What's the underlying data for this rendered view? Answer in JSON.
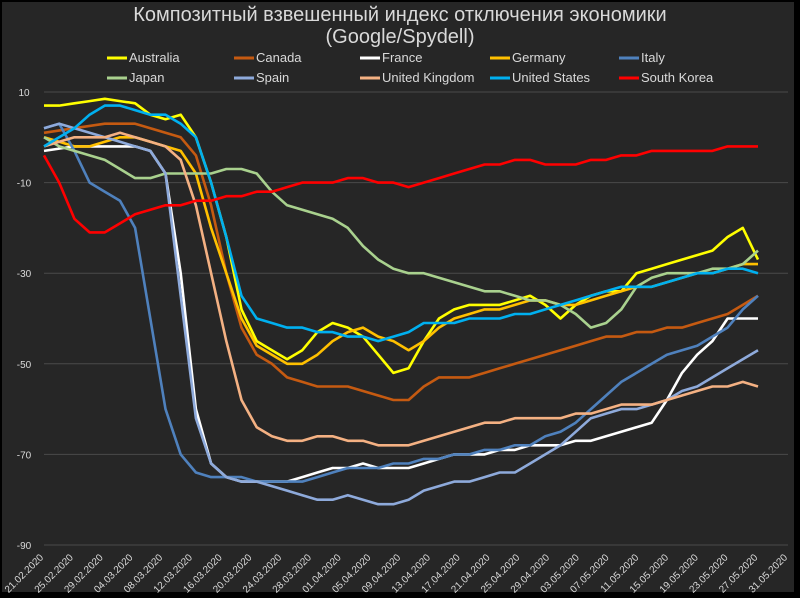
{
  "chart_data": {
    "type": "line",
    "title_line1": "Композитный взвешенный индекс отключения экономики",
    "title_line2": "(Google/Spydell)",
    "ylim": [
      -90,
      10
    ],
    "yticks": [
      10,
      -10,
      -30,
      -50,
      -70,
      -90
    ],
    "grid": "horizontal",
    "legend_position": "top",
    "x_tick_labels": [
      "21.02.2020",
      "25.02.2020",
      "29.02.2020",
      "04.03.2020",
      "08.03.2020",
      "12.03.2020",
      "16.03.2020",
      "20.03.2020",
      "24.03.2020",
      "28.03.2020",
      "01.04.2020",
      "05.04.2020",
      "09.04.2020",
      "13.04.2020",
      "17.04.2020",
      "21.04.2020",
      "25.04.2020",
      "29.04.2020",
      "03.05.2020",
      "07.05.2020",
      "11.05.2020",
      "15.05.2020",
      "19.05.2020",
      "23.05.2020",
      "27.05.2020",
      "31.05.2020"
    ],
    "series": [
      {
        "name": "Australia",
        "color": "#ffff00",
        "x": [
          0,
          2,
          4,
          6,
          8,
          10,
          12,
          14,
          16,
          18,
          20,
          22,
          24,
          26,
          28,
          30,
          32,
          34,
          36,
          38,
          40,
          42,
          44,
          46,
          48,
          50,
          52,
          54,
          56,
          58,
          60,
          62,
          64,
          66,
          68,
          70,
          72,
          74,
          76,
          78,
          80,
          82,
          84,
          86,
          88,
          90,
          92,
          94
        ],
        "y": [
          7,
          7,
          7.5,
          8,
          8.5,
          8,
          7.5,
          5,
          4,
          5,
          0,
          -10,
          -22,
          -38,
          -45,
          -47,
          -49,
          -47,
          -43,
          -41,
          -42,
          -44,
          -48,
          -52,
          -51,
          -45,
          -40,
          -38,
          -37,
          -37,
          -37,
          -36,
          -35,
          -37,
          -40,
          -37,
          -35,
          -34,
          -34,
          -30,
          -29,
          -28,
          -27,
          -26,
          -25,
          -22,
          -20,
          -27
        ]
      },
      {
        "name": "Canada",
        "color": "#c55a11",
        "x": [
          0,
          4,
          8,
          12,
          14,
          16,
          18,
          20,
          22,
          24,
          26,
          28,
          30,
          32,
          34,
          36,
          38,
          40,
          42,
          44,
          46,
          48,
          50,
          52,
          54,
          56,
          58,
          60,
          62,
          64,
          66,
          68,
          70,
          72,
          74,
          76,
          78,
          80,
          82,
          84,
          86,
          88,
          90,
          92,
          94
        ],
        "y": [
          1,
          2,
          3,
          3,
          2,
          1,
          0,
          -4,
          -15,
          -30,
          -42,
          -48,
          -50,
          -53,
          -54,
          -55,
          -55,
          -55,
          -56,
          -57,
          -58,
          -58,
          -55,
          -53,
          -53,
          -53,
          -52,
          -51,
          -50,
          -49,
          -48,
          -47,
          -46,
          -45,
          -44,
          -44,
          -43,
          -43,
          -42,
          -42,
          -41,
          -40,
          -39,
          -37,
          -35
        ]
      },
      {
        "name": "France",
        "color": "#ffffff",
        "x": [
          0,
          4,
          8,
          10,
          12,
          14,
          16,
          18,
          20,
          22,
          24,
          26,
          28,
          30,
          32,
          34,
          36,
          38,
          40,
          42,
          44,
          46,
          48,
          50,
          52,
          54,
          56,
          58,
          60,
          62,
          64,
          66,
          68,
          70,
          72,
          74,
          76,
          78,
          80,
          82,
          84,
          86,
          88,
          90,
          92,
          94
        ],
        "y": [
          -3,
          -2,
          -2,
          -2,
          -2,
          -3,
          -8,
          -30,
          -60,
          -72,
          -75,
          -76,
          -76,
          -76,
          -76,
          -75,
          -74,
          -73,
          -73,
          -72,
          -73,
          -73,
          -73,
          -72,
          -71,
          -70,
          -70,
          -70,
          -69,
          -69,
          -68,
          -68,
          -68,
          -67,
          -67,
          -66,
          -65,
          -64,
          -63,
          -58,
          -52,
          -48,
          -45,
          -40,
          -40,
          -40
        ]
      },
      {
        "name": "Germany",
        "color": "#ffc000",
        "x": [
          0,
          2,
          4,
          6,
          8,
          10,
          12,
          14,
          16,
          18,
          20,
          22,
          24,
          26,
          28,
          30,
          32,
          34,
          36,
          38,
          40,
          42,
          44,
          46,
          48,
          50,
          52,
          54,
          56,
          58,
          60,
          62,
          64,
          66,
          68,
          70,
          72,
          74,
          76,
          78,
          80,
          82,
          84,
          86,
          88,
          90,
          92,
          94
        ],
        "y": [
          0,
          -1,
          -2,
          -2,
          -1,
          0,
          0,
          -1,
          -2,
          -3,
          -8,
          -20,
          -30,
          -40,
          -46,
          -48,
          -50,
          -50,
          -48,
          -45,
          -43,
          -42,
          -44,
          -45,
          -47,
          -45,
          -42,
          -40,
          -39,
          -38,
          -38,
          -37,
          -36,
          -36,
          -37,
          -37,
          -36,
          -35,
          -34,
          -33,
          -33,
          -32,
          -31,
          -30,
          -30,
          -29,
          -28,
          -28
        ]
      },
      {
        "name": "Italy",
        "color": "#4f81bd",
        "x": [
          0,
          2,
          4,
          6,
          8,
          10,
          12,
          14,
          16,
          18,
          20,
          22,
          24,
          26,
          28,
          30,
          32,
          34,
          36,
          38,
          40,
          42,
          44,
          46,
          48,
          50,
          52,
          54,
          56,
          58,
          60,
          62,
          64,
          66,
          68,
          70,
          72,
          74,
          76,
          78,
          80,
          82,
          84,
          86,
          88,
          90,
          92,
          94
        ],
        "y": [
          2,
          3,
          -3,
          -10,
          -12,
          -14,
          -20,
          -40,
          -60,
          -70,
          -74,
          -75,
          -75,
          -75,
          -76,
          -76,
          -76,
          -76,
          -75,
          -74,
          -73,
          -73,
          -73,
          -72,
          -72,
          -71,
          -71,
          -70,
          -70,
          -69,
          -69,
          -68,
          -68,
          -66,
          -65,
          -63,
          -60,
          -57,
          -54,
          -52,
          -50,
          -48,
          -47,
          -46,
          -44,
          -42,
          -38,
          -35
        ]
      },
      {
        "name": "Japan",
        "color": "#a9d18e",
        "x": [
          0,
          2,
          4,
          6,
          8,
          10,
          12,
          14,
          16,
          18,
          20,
          22,
          24,
          26,
          28,
          30,
          32,
          34,
          36,
          38,
          40,
          42,
          44,
          46,
          48,
          50,
          52,
          54,
          56,
          58,
          60,
          62,
          64,
          66,
          68,
          70,
          72,
          74,
          76,
          78,
          80,
          82,
          84,
          86,
          88,
          90,
          92,
          94
        ],
        "y": [
          0,
          -2,
          -3,
          -4,
          -5,
          -7,
          -9,
          -9,
          -8,
          -8,
          -8,
          -8,
          -7,
          -7,
          -8,
          -12,
          -15,
          -16,
          -17,
          -18,
          -20,
          -24,
          -27,
          -29,
          -30,
          -30,
          -31,
          -32,
          -33,
          -34,
          -34,
          -35,
          -36,
          -36,
          -37,
          -39,
          -42,
          -41,
          -38,
          -33,
          -31,
          -30,
          -30,
          -30,
          -29,
          -29,
          -28,
          -25
        ]
      },
      {
        "name": "Spain",
        "color": "#8eaadb",
        "x": [
          0,
          2,
          4,
          6,
          8,
          10,
          12,
          14,
          16,
          18,
          20,
          22,
          24,
          26,
          28,
          30,
          32,
          34,
          36,
          38,
          40,
          42,
          44,
          46,
          48,
          50,
          52,
          54,
          56,
          58,
          60,
          62,
          64,
          66,
          68,
          70,
          72,
          74,
          76,
          78,
          80,
          82,
          84,
          86,
          88,
          90,
          92,
          94
        ],
        "y": [
          2,
          3,
          2,
          1,
          0,
          -1,
          -2,
          -3,
          -8,
          -35,
          -62,
          -72,
          -75,
          -76,
          -76,
          -77,
          -78,
          -79,
          -80,
          -80,
          -79,
          -80,
          -81,
          -81,
          -80,
          -78,
          -77,
          -76,
          -76,
          -75,
          -74,
          -74,
          -72,
          -70,
          -68,
          -65,
          -62,
          -61,
          -60,
          -60,
          -59,
          -58,
          -56,
          -55,
          -53,
          -51,
          -49,
          -47
        ]
      },
      {
        "name": "United Kingdom",
        "color": "#f4b183",
        "x": [
          0,
          2,
          4,
          6,
          8,
          10,
          12,
          14,
          16,
          18,
          20,
          22,
          24,
          26,
          28,
          30,
          32,
          34,
          36,
          38,
          40,
          42,
          44,
          46,
          48,
          50,
          52,
          54,
          56,
          58,
          60,
          62,
          64,
          66,
          68,
          70,
          72,
          74,
          76,
          78,
          80,
          82,
          84,
          86,
          88,
          90,
          92,
          94
        ],
        "y": [
          -2,
          -1,
          0,
          0,
          0,
          1,
          0,
          -1,
          -2,
          -5,
          -15,
          -30,
          -45,
          -58,
          -64,
          -66,
          -67,
          -67,
          -66,
          -66,
          -67,
          -67,
          -68,
          -68,
          -68,
          -67,
          -66,
          -65,
          -64,
          -63,
          -63,
          -62,
          -62,
          -62,
          -62,
          -61,
          -61,
          -60,
          -59,
          -59,
          -59,
          -58,
          -57,
          -56,
          -55,
          -55,
          -54,
          -55
        ]
      },
      {
        "name": "United States",
        "color": "#00b0f0",
        "x": [
          0,
          2,
          4,
          6,
          8,
          10,
          12,
          14,
          16,
          18,
          20,
          22,
          24,
          26,
          28,
          30,
          32,
          34,
          36,
          38,
          40,
          42,
          44,
          46,
          48,
          50,
          52,
          54,
          56,
          58,
          60,
          62,
          64,
          66,
          68,
          70,
          72,
          74,
          76,
          78,
          80,
          82,
          84,
          86,
          88,
          90,
          92,
          94
        ],
        "y": [
          -2,
          0,
          2,
          5,
          7,
          7,
          6,
          5,
          5,
          3,
          0,
          -10,
          -22,
          -35,
          -40,
          -41,
          -42,
          -42,
          -43,
          -43,
          -44,
          -44,
          -45,
          -44,
          -43,
          -41,
          -41,
          -41,
          -40,
          -40,
          -40,
          -39,
          -39,
          -38,
          -37,
          -36,
          -35,
          -34,
          -33,
          -33,
          -33,
          -32,
          -31,
          -30,
          -30,
          -29,
          -29,
          -30
        ]
      },
      {
        "name": "South Korea",
        "color": "#ff0000",
        "x": [
          0,
          2,
          4,
          6,
          8,
          10,
          12,
          14,
          16,
          18,
          20,
          22,
          24,
          26,
          28,
          30,
          32,
          34,
          36,
          38,
          40,
          42,
          44,
          46,
          48,
          50,
          52,
          54,
          56,
          58,
          60,
          62,
          64,
          66,
          68,
          70,
          72,
          74,
          76,
          78,
          80,
          82,
          84,
          86,
          88,
          90,
          92,
          94
        ],
        "y": [
          -4,
          -10,
          -18,
          -21,
          -21,
          -19,
          -17,
          -16,
          -15,
          -15,
          -14,
          -14,
          -13,
          -13,
          -12,
          -12,
          -11,
          -10,
          -10,
          -10,
          -9,
          -9,
          -10,
          -10,
          -11,
          -10,
          -9,
          -8,
          -7,
          -6,
          -6,
          -5,
          -5,
          -6,
          -6,
          -6,
          -5,
          -5,
          -4,
          -4,
          -3,
          -3,
          -3,
          -3,
          -3,
          -2,
          -2,
          -2
        ]
      }
    ]
  }
}
